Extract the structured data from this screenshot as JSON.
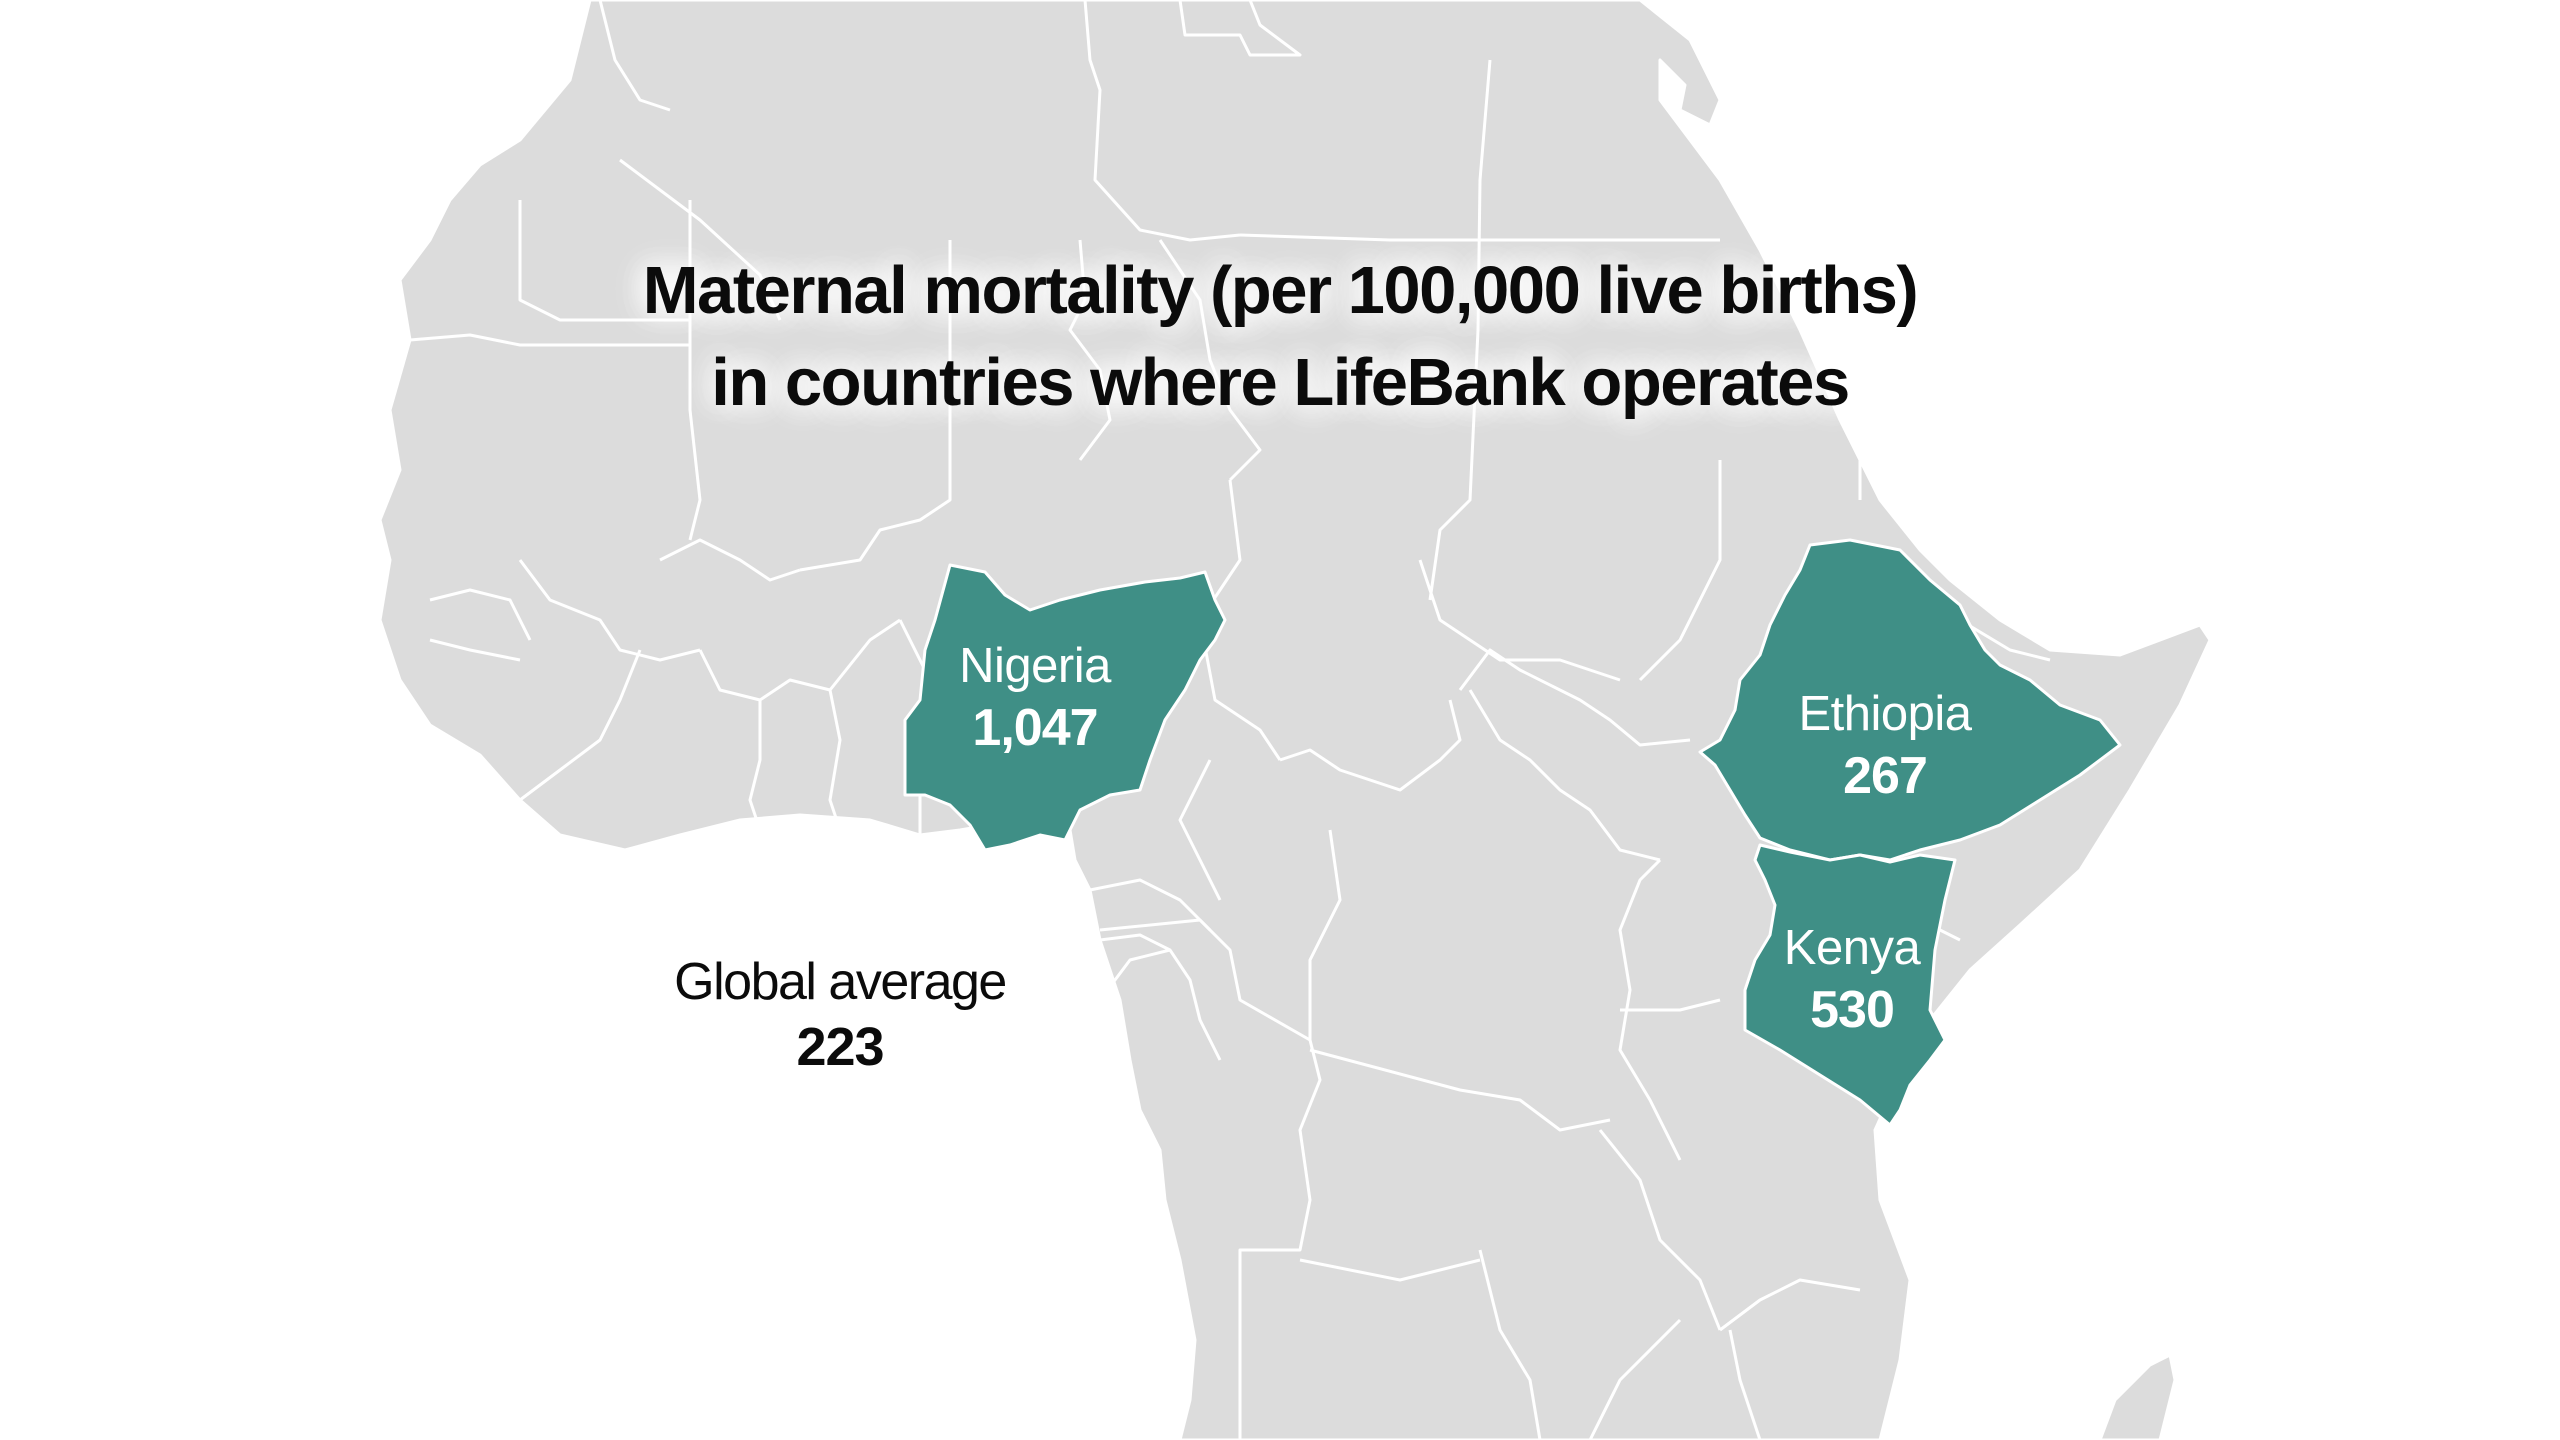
{
  "title": {
    "line1": "Maternal mortality (per 100,000 live births)",
    "line2": "in countries where LifeBank operates"
  },
  "highlight_color": "#3f8f86",
  "land_color": "#dcdcdc",
  "border_color": "#ffffff",
  "countries": [
    {
      "name": "Nigeria",
      "value": "1,047"
    },
    {
      "name": "Ethiopia",
      "value": "267"
    },
    {
      "name": "Kenya",
      "value": "530"
    }
  ],
  "global_average": {
    "label": "Global average",
    "value": "223"
  }
}
